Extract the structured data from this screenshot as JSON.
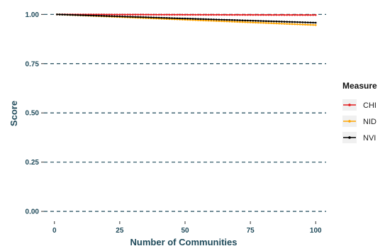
{
  "chart_data": {
    "type": "line",
    "xlabel": "Number of Communities",
    "ylabel": "Score",
    "xlim": [
      -4,
      104
    ],
    "ylim": [
      -0.05,
      1.03
    ],
    "x_ticks": [
      0,
      25,
      50,
      75,
      100
    ],
    "x_tick_labels": [
      "0",
      "25",
      "50",
      "75",
      "100"
    ],
    "y_ticks": [
      0,
      0.25,
      0.5,
      0.75,
      1.0
    ],
    "y_tick_labels": [
      "0.00",
      "0.25",
      "0.50",
      "0.75",
      "1.00"
    ],
    "grid": "horizontal-dashed",
    "legend": {
      "title": "Measure",
      "position": "right"
    },
    "series": [
      {
        "name": "CHI",
        "color": "#e31a1c",
        "x_start": 1,
        "x_end": 100,
        "y_start": 1.0,
        "y_end": 0.997
      },
      {
        "name": "NID",
        "color": "#ffa500",
        "x_start": 1,
        "x_end": 100,
        "y_start": 1.0,
        "y_end": 0.946
      },
      {
        "name": "NVI",
        "color": "#000000",
        "x_start": 1,
        "x_end": 100,
        "y_start": 1.0,
        "y_end": 0.958
      }
    ]
  }
}
